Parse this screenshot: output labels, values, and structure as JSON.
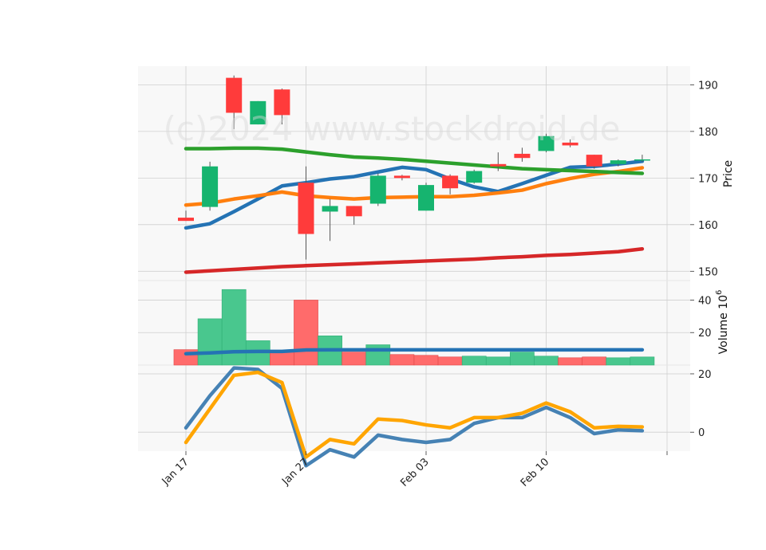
{
  "chart_data": {
    "type": "candlestick",
    "watermark": "(c)2024 www.stockdroid.de",
    "x_labels": [
      "Jan 17",
      "Jan 27",
      "Feb 03",
      "Feb 10"
    ],
    "x_label_index": [
      0,
      5,
      10,
      15
    ],
    "colors": {
      "up": "#16b46f",
      "down": "#ff3b3b",
      "vol_up": "#49c78e",
      "vol_down": "#ff6b6b",
      "grid": "#cfcfcf",
      "panel_bg": "#f8f8f8",
      "ma_blue": "#2473b4",
      "ma_orange": "#ff7f0e",
      "ma_green": "#2ca02c",
      "ma_red": "#d62728",
      "vol_ma": "#2473b4",
      "macd": "#4682b4",
      "signal": "#ffa500"
    },
    "price_panel": {
      "ylabel": "Price",
      "ylim": [
        148,
        194
      ],
      "yticks": [
        150,
        160,
        170,
        180,
        190
      ],
      "candles": [
        {
          "o": 161.5,
          "h": 163.0,
          "l": 160.8,
          "c": 160.8
        },
        {
          "o": 163.8,
          "h": 173.5,
          "l": 163.0,
          "c": 172.5
        },
        {
          "o": 191.5,
          "h": 192.0,
          "l": 180.5,
          "c": 184.0
        },
        {
          "o": 181.5,
          "h": 186.5,
          "l": 181.5,
          "c": 186.5
        },
        {
          "o": 189.0,
          "h": 189.2,
          "l": 181.5,
          "c": 183.5
        },
        {
          "o": 169.0,
          "h": 172.5,
          "l": 152.5,
          "c": 158.0
        },
        {
          "o": 162.8,
          "h": 165.5,
          "l": 156.5,
          "c": 164.0
        },
        {
          "o": 164.0,
          "h": 164.0,
          "l": 160.0,
          "c": 161.8
        },
        {
          "o": 164.5,
          "h": 171.0,
          "l": 164.0,
          "c": 170.5
        },
        {
          "o": 170.5,
          "h": 170.7,
          "l": 169.5,
          "c": 170.0
        },
        {
          "o": 163.0,
          "h": 169.0,
          "l": 163.0,
          "c": 168.5
        },
        {
          "o": 170.5,
          "h": 170.8,
          "l": 166.5,
          "c": 167.8
        },
        {
          "o": 169.0,
          "h": 171.8,
          "l": 168.8,
          "c": 171.5
        },
        {
          "o": 173.0,
          "h": 175.5,
          "l": 171.5,
          "c": 172.5
        },
        {
          "o": 175.2,
          "h": 176.5,
          "l": 173.5,
          "c": 174.3
        },
        {
          "o": 175.8,
          "h": 179.5,
          "l": 175.5,
          "c": 179.0
        },
        {
          "o": 177.6,
          "h": 178.3,
          "l": 176.6,
          "c": 177.0
        },
        {
          "o": 175.0,
          "h": 175.0,
          "l": 172.0,
          "c": 172.5
        },
        {
          "o": 173.0,
          "h": 174.0,
          "l": 172.5,
          "c": 173.8
        },
        {
          "o": 174.0,
          "h": 175.0,
          "l": 173.5,
          "c": 174.0
        }
      ],
      "moving_averages": [
        {
          "color": "#2473b4",
          "values": [
            159.3,
            160.2,
            162.8,
            165.5,
            168.3,
            169.0,
            169.8,
            170.3,
            171.3,
            172.3,
            171.8,
            169.8,
            168.1,
            167.1,
            168.8,
            170.6,
            172.3,
            172.5,
            173.0,
            173.6
          ]
        },
        {
          "color": "#ff7f0e",
          "values": [
            164.2,
            164.6,
            165.5,
            166.2,
            167.0,
            166.2,
            165.8,
            165.5,
            165.8,
            165.9,
            166.0,
            166.0,
            166.3,
            166.8,
            167.4,
            168.8,
            169.9,
            170.8,
            171.4,
            172.2
          ]
        },
        {
          "color": "#2ca02c",
          "values": [
            176.3,
            176.3,
            176.4,
            176.4,
            176.2,
            175.6,
            175.0,
            174.5,
            174.3,
            174.0,
            173.6,
            173.2,
            172.8,
            172.4,
            172.0,
            171.8,
            171.6,
            171.4,
            171.2,
            171.0
          ]
        },
        {
          "color": "#d62728",
          "values": [
            149.8,
            150.1,
            150.4,
            150.7,
            151.0,
            151.2,
            151.4,
            151.6,
            151.8,
            152.0,
            152.2,
            152.4,
            152.6,
            152.9,
            153.1,
            153.4,
            153.6,
            153.9,
            154.2,
            154.8
          ]
        }
      ]
    },
    "volume_panel": {
      "ylabel": "Volume  10",
      "ylabel_exp": "6",
      "ylim": [
        0,
        52
      ],
      "yticks": [
        20,
        40
      ],
      "volumes": [
        9.5,
        28.5,
        46.5,
        15.0,
        9.0,
        40.0,
        18.0,
        8.0,
        12.5,
        6.5,
        6.0,
        5.0,
        5.5,
        5.0,
        8.0,
        5.5,
        4.5,
        5.0,
        4.5,
        5.0
      ],
      "up": [
        false,
        true,
        true,
        true,
        false,
        false,
        true,
        false,
        true,
        false,
        false,
        false,
        true,
        true,
        true,
        true,
        false,
        false,
        true,
        true
      ],
      "ma_values": [
        7.0,
        7.5,
        8.2,
        8.4,
        8.4,
        9.3,
        9.4,
        9.4,
        9.4,
        9.4,
        9.4,
        9.4,
        9.4,
        9.4,
        9.4,
        9.4,
        9.4,
        9.4,
        9.4,
        9.4
      ]
    },
    "indicator_panel": {
      "ylim": [
        -6.5,
        23
      ],
      "yticks": [
        0,
        20
      ],
      "line1": [
        1.5,
        12.5,
        22.0,
        21.5,
        15.0,
        -11.5,
        -6.0,
        -8.5,
        -1.0,
        -2.5,
        -3.5,
        -2.5,
        3.0,
        5.0,
        5.0,
        8.5,
        5.0,
        -0.5,
        0.8,
        0.5
      ],
      "line2": [
        -3.5,
        8.0,
        19.5,
        20.5,
        17.0,
        -8.5,
        -2.5,
        -4.0,
        4.5,
        4.0,
        2.5,
        1.5,
        5.0,
        5.0,
        6.5,
        10.0,
        7.0,
        1.5,
        2.0,
        1.8
      ]
    }
  }
}
